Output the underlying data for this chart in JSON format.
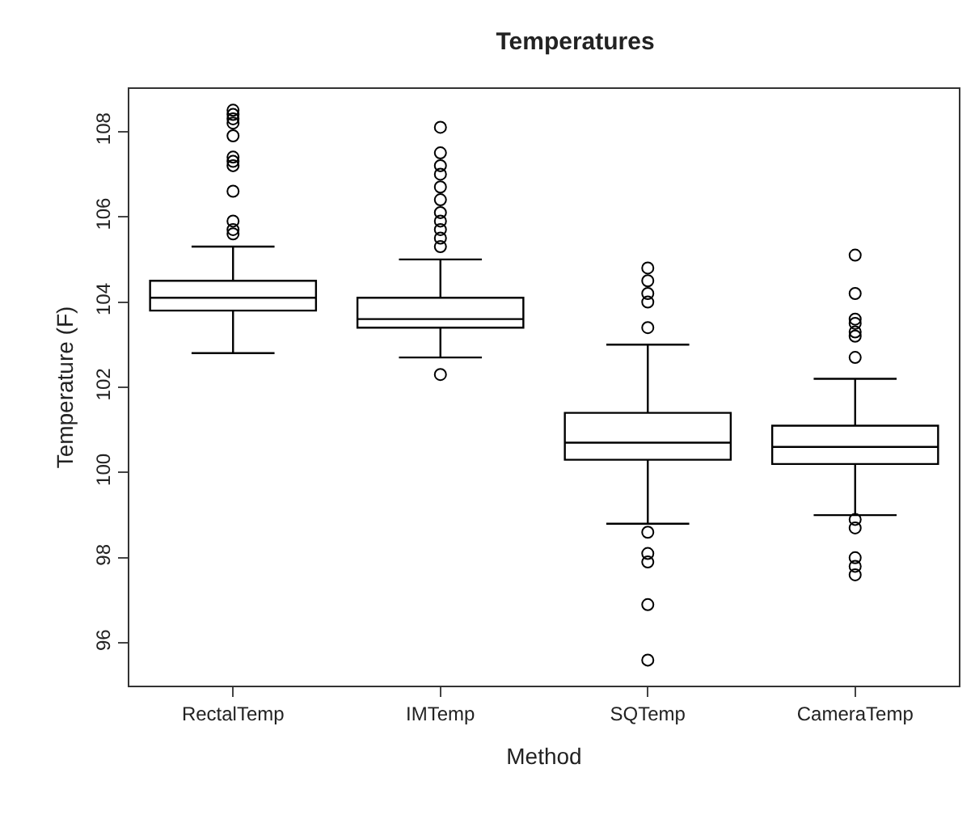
{
  "chart_data": {
    "type": "box",
    "title": "Temperatures",
    "xlabel": "Method",
    "ylabel": "Temperature (F)",
    "categories": [
      "RectalTemp",
      "IMTemp",
      "SQTemp",
      "CameraTemp"
    ],
    "ylim": [
      95,
      109
    ],
    "yticks": [
      96,
      98,
      100,
      102,
      104,
      106,
      108
    ],
    "grid": false,
    "marker": "circle",
    "series": [
      {
        "color": "#000000",
        "boxes": [
          {
            "low": 102.8,
            "q1": 103.8,
            "median": 104.1,
            "q3": 104.5,
            "high": 105.3,
            "outliers": [
              108.5,
              108.4,
              108.3,
              108.2,
              107.9,
              107.4,
              107.3,
              107.2,
              106.6,
              105.9,
              105.7,
              105.6
            ]
          },
          {
            "low": 102.7,
            "q1": 103.4,
            "median": 103.6,
            "q3": 104.1,
            "high": 105.0,
            "outliers": [
              108.1,
              107.5,
              107.2,
              107.0,
              106.7,
              106.4,
              106.1,
              105.9,
              105.7,
              105.5,
              105.3,
              102.3
            ]
          },
          {
            "low": 98.8,
            "q1": 100.3,
            "median": 100.7,
            "q3": 101.4,
            "high": 103.0,
            "outliers": [
              104.8,
              104.5,
              104.2,
              104.0,
              103.4,
              98.6,
              98.1,
              97.9,
              96.9,
              95.6
            ]
          },
          {
            "low": 99.0,
            "q1": 100.2,
            "median": 100.6,
            "q3": 101.1,
            "high": 102.2,
            "outliers": [
              105.1,
              104.2,
              103.6,
              103.5,
              103.3,
              103.2,
              102.7,
              98.9,
              98.7,
              98.0,
              97.8,
              97.6
            ]
          }
        ]
      }
    ]
  }
}
